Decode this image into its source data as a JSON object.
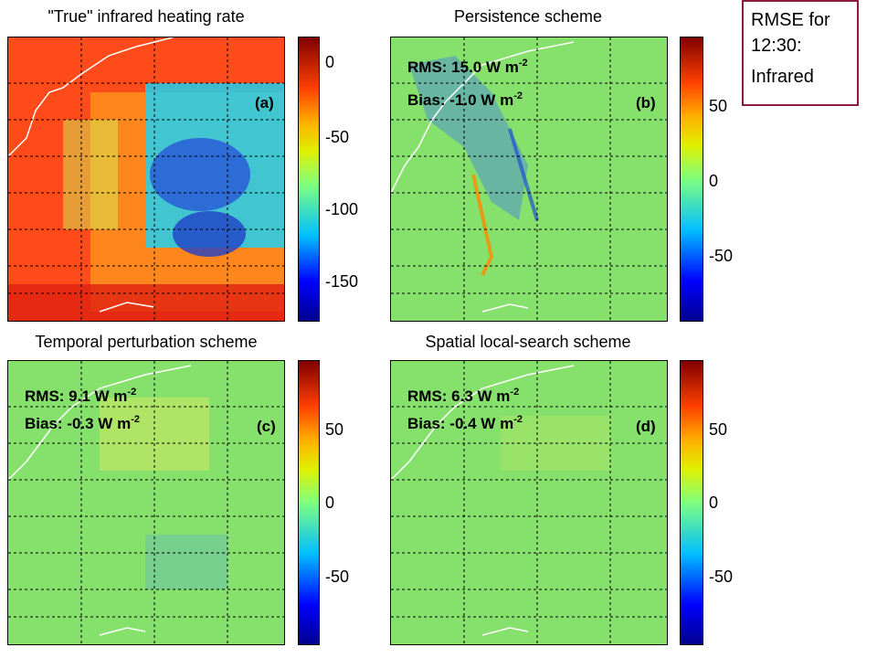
{
  "note": {
    "line1": "RMSE for",
    "line2": "12:30:",
    "line3": "Infrared"
  },
  "panels": [
    {
      "title": "\"True\" infrared heating rate",
      "label": "(a)",
      "rms": "",
      "bias": "",
      "colorbar_ticks": [
        "0",
        "-50",
        "-100",
        "-150"
      ]
    },
    {
      "title": "Persistence scheme",
      "label": "(b)",
      "rms": "RMS: 15.0 W m",
      "bias": "Bias: -1.0 W m",
      "colorbar_ticks": [
        "50",
        "0",
        "-50"
      ]
    },
    {
      "title": "Temporal perturbation scheme",
      "label": "(c)",
      "rms": "RMS: 9.1 W m",
      "bias": "Bias: -0.3 W m",
      "colorbar_ticks": [
        "50",
        "0",
        "-50"
      ]
    },
    {
      "title": "Spatial local-search scheme",
      "label": "(d)",
      "rms": "RMS: 6.3 W m",
      "bias": "Bias: -0.4 W m",
      "colorbar_ticks": [
        "50",
        "0",
        "-50"
      ]
    }
  ],
  "unit_exponent": "-2",
  "colormap": [
    "#00008f",
    "#0000ff",
    "#00bfff",
    "#20f0c0",
    "#7fff7f",
    "#e0f000",
    "#ffb000",
    "#ff4000",
    "#c00000",
    "#800000"
  ]
}
